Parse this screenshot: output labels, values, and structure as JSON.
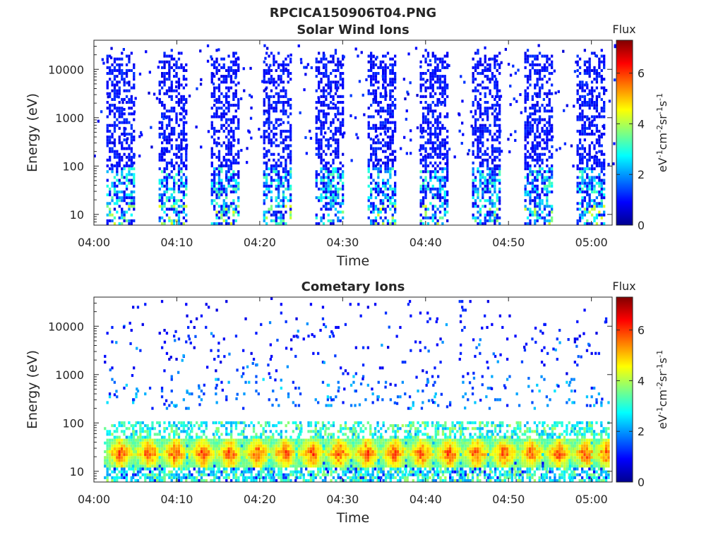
{
  "figure": {
    "title": "RPCICA150906T04.PNG"
  },
  "chart_data": [
    {
      "type": "heatmap",
      "title": "Solar Wind Ions",
      "xlabel": "Time",
      "ylabel": "Energy (eV)",
      "xticks": [
        "04:00",
        "04:10",
        "04:20",
        "04:30",
        "04:40",
        "04:50",
        "05:00"
      ],
      "xlim_minutes": [
        0,
        62.5
      ],
      "yticks": [
        "10",
        "100",
        "1000",
        "10000"
      ],
      "ylim": [
        6,
        40000
      ],
      "yscale": "log",
      "colorbar": {
        "title": "Flux",
        "label": "eV-1cm-2sr-1s-1",
        "ticks": [
          "0",
          "2",
          "4",
          "6"
        ],
        "range": [
          0,
          7.3
        ],
        "colormap": "jet"
      },
      "scan_centers_minutes": [
        3.1,
        9.4,
        15.7,
        22.0,
        28.3,
        34.6,
        40.9,
        47.2,
        53.5,
        59.8
      ],
      "scan_width_minutes": 3.2,
      "populated_energy_range": [
        6,
        15000
      ],
      "peak_flux": 4.5,
      "grid": false
    },
    {
      "type": "heatmap",
      "title": "Cometary Ions",
      "xlabel": "Time",
      "ylabel": "Energy (eV)",
      "xticks": [
        "04:00",
        "04:10",
        "04:20",
        "04:30",
        "04:40",
        "04:50",
        "05:00"
      ],
      "xlim_minutes": [
        0,
        62.5
      ],
      "yticks": [
        "10",
        "100",
        "1000",
        "10000"
      ],
      "ylim": [
        6,
        40000
      ],
      "yscale": "log",
      "colorbar": {
        "title": "Flux",
        "label": "eV-1cm-2sr-1s-1",
        "ticks": [
          "0",
          "2",
          "4",
          "6"
        ],
        "range": [
          0,
          7.3
        ],
        "colormap": "jet"
      },
      "peak_centers_minutes": [
        3.1,
        6.5,
        9.7,
        13.0,
        16.3,
        19.6,
        22.9,
        26.2,
        29.5,
        32.8,
        36.1,
        39.4,
        42.7,
        46.0,
        49.3,
        52.6,
        55.9,
        59.2,
        61.8
      ],
      "peak_energy_range": [
        12,
        45
      ],
      "peak_flux": 6.3,
      "grid": false
    }
  ]
}
